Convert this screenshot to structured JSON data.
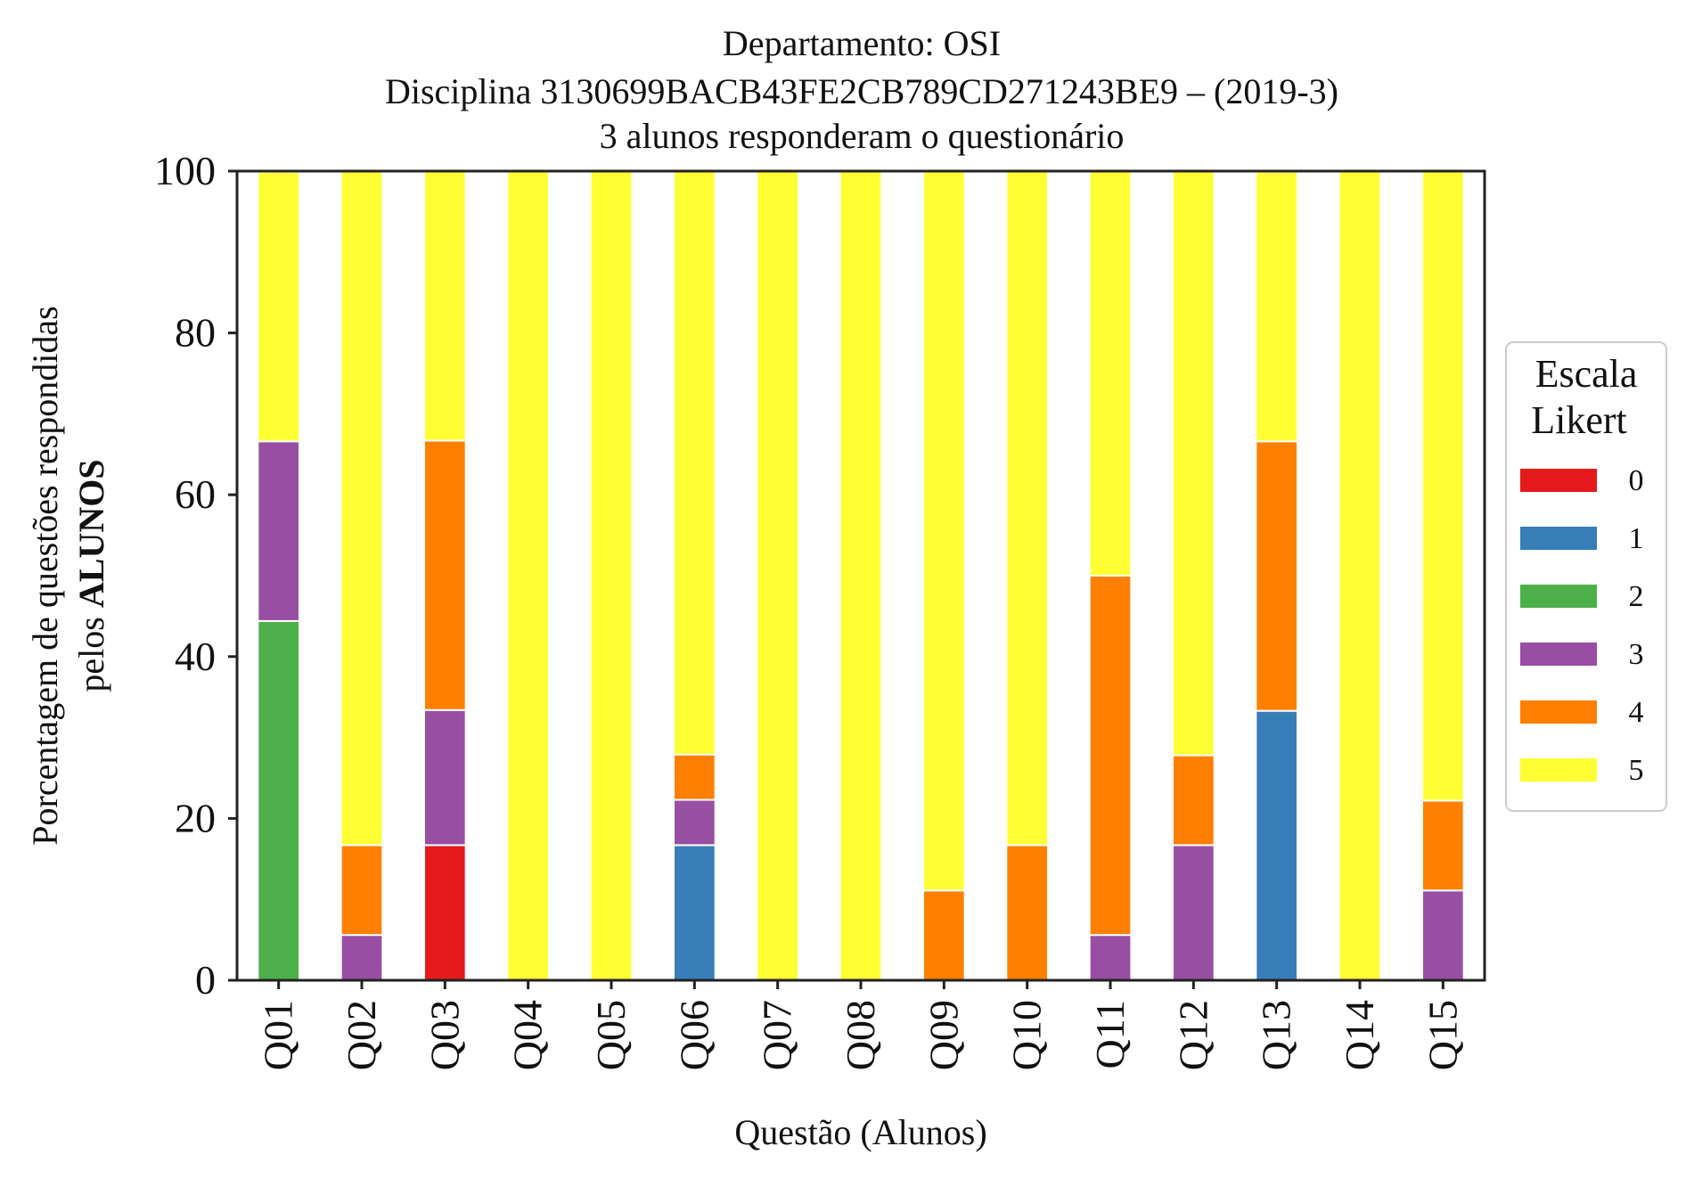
{
  "chart_data": {
    "type": "bar",
    "stacked": true,
    "title_lines": [
      "Departamento: OSI",
      "Disciplina 3130699BACB43FE2CB789CD271243BE9 – (2019-3)",
      "3 alunos responderam o questionário"
    ],
    "xlabel": "Questão (Alunos)",
    "ylabel_line1": "Porcentagem de questões respondidas",
    "ylabel_line2_prefix": "pelos ",
    "ylabel_line2_bold": "ALUNOS",
    "ylim": [
      0,
      100
    ],
    "yticks": [
      "0",
      "20",
      "40",
      "60",
      "80",
      "100"
    ],
    "grid": false,
    "legend": {
      "title_lines": [
        "Escala",
        "Likert"
      ],
      "placement": "right"
    },
    "categories": [
      "Q01",
      "Q02",
      "Q03",
      "Q04",
      "Q05",
      "Q06",
      "Q07",
      "Q08",
      "Q09",
      "Q10",
      "Q11",
      "Q12",
      "Q13",
      "Q14",
      "Q15"
    ],
    "series": [
      {
        "name": "0",
        "color": "#e41a1c",
        "values": [
          0,
          0,
          16.7,
          0,
          0,
          0,
          0,
          0,
          0,
          0,
          0,
          0,
          0,
          0,
          0
        ]
      },
      {
        "name": "1",
        "color": "#377eb8",
        "values": [
          0,
          0,
          0,
          0,
          0,
          16.7,
          0,
          0,
          0,
          0,
          0,
          0,
          33.3,
          0,
          0
        ]
      },
      {
        "name": "2",
        "color": "#4daf4a",
        "values": [
          44.4,
          0,
          0,
          0,
          0,
          0,
          0,
          0,
          0,
          0,
          0,
          0,
          0,
          0,
          0
        ]
      },
      {
        "name": "3",
        "color": "#984ea3",
        "values": [
          22.2,
          5.6,
          16.7,
          0,
          0,
          5.6,
          0,
          0,
          0,
          0,
          5.6,
          16.7,
          0,
          0,
          11.1
        ]
      },
      {
        "name": "4",
        "color": "#ff7f00",
        "values": [
          0,
          11.1,
          33.3,
          0,
          0,
          5.6,
          0,
          0,
          11.1,
          16.7,
          44.4,
          11.1,
          33.3,
          0,
          11.1
        ]
      },
      {
        "name": "5",
        "color": "#ffff33",
        "values": [
          33.3,
          83.3,
          33.3,
          100,
          100,
          72.2,
          100,
          100,
          88.9,
          83.3,
          50.0,
          72.2,
          33.3,
          100,
          77.8
        ]
      }
    ]
  }
}
